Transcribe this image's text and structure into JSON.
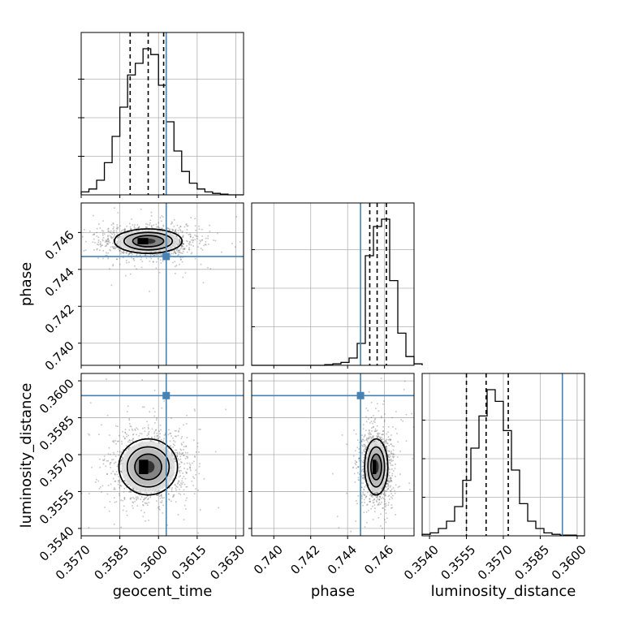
{
  "chart_data": {
    "type": "corner",
    "parameters": [
      "geocent_time",
      "phase",
      "luminosity_distance"
    ],
    "truths": {
      "geocent_time": 0.3603,
      "phase": 0.7447,
      "luminosity_distance": 0.3594
    },
    "quantiles_16_50_84": {
      "geocent_time": [
        0.3589,
        0.3596,
        0.3602
      ],
      "phase": [
        0.7452,
        0.7456,
        0.7461
      ],
      "luminosity_distance": [
        0.3555,
        0.3563,
        0.3572
      ]
    },
    "ranges": {
      "geocent_time": [
        0.357,
        0.3633
      ],
      "phase": [
        0.7388,
        0.7476
      ],
      "luminosity_distance": [
        0.3537,
        0.3603
      ]
    },
    "ticks": {
      "geocent_time": [
        {
          "v": 0.357,
          "label": "0.3570"
        },
        {
          "v": 0.3585,
          "label": "0.3585"
        },
        {
          "v": 0.36,
          "label": "0.3600"
        },
        {
          "v": 0.3615,
          "label": "0.3615"
        },
        {
          "v": 0.363,
          "label": "0.3630"
        }
      ],
      "phase": [
        {
          "v": 0.74,
          "label": "0.740"
        },
        {
          "v": 0.742,
          "label": "0.742"
        },
        {
          "v": 0.744,
          "label": "0.744"
        },
        {
          "v": 0.746,
          "label": "0.746"
        }
      ],
      "luminosity_distance": [
        {
          "v": 0.354,
          "label": "0.3540"
        },
        {
          "v": 0.3555,
          "label": "0.3555"
        },
        {
          "v": 0.357,
          "label": "0.3570"
        },
        {
          "v": 0.3585,
          "label": "0.3585"
        },
        {
          "v": 0.36,
          "label": "0.3600"
        }
      ]
    },
    "axis_labels": {
      "x": [
        "geocent_time",
        "phase",
        "luminosity_distance"
      ],
      "y": [
        "",
        "phase",
        "luminosity_distance"
      ]
    },
    "histograms": {
      "geocent_time": {
        "edges_start": 0.357,
        "bin_width": 0.0003,
        "counts": [
          0.02,
          0.04,
          0.1,
          0.22,
          0.4,
          0.6,
          0.82,
          0.9,
          1.0,
          0.96,
          0.75,
          0.5,
          0.3,
          0.16,
          0.08,
          0.04,
          0.02,
          0.01,
          0.005,
          0.0,
          0.0
        ]
      },
      "phase": {
        "edges_start": 0.7388,
        "bin_width": 0.00044,
        "counts": [
          0,
          0,
          0,
          0,
          0,
          0,
          0,
          0,
          0,
          0.005,
          0.01,
          0.02,
          0.05,
          0.15,
          0.75,
          0.95,
          1.0,
          0.58,
          0.22,
          0.06,
          0.01
        ]
      },
      "luminosity_distance": {
        "edges_start": 0.3537,
        "bin_width": 0.00033,
        "counts": [
          0.01,
          0.02,
          0.05,
          0.1,
          0.2,
          0.38,
          0.6,
          0.82,
          1.0,
          0.92,
          0.72,
          0.45,
          0.22,
          0.1,
          0.05,
          0.02,
          0.01,
          0.005,
          0.005,
          0.0
        ]
      }
    },
    "blobs": {
      "phase_vs_geocent_time": {
        "cx": 0.3596,
        "cy": 0.74553,
        "sx": 0.00075,
        "sy": 0.00038
      },
      "luminosity_distance_vs_geocent_time": {
        "cx": 0.3596,
        "cy": 0.3565,
        "sx": 0.00065,
        "sy": 0.00065
      },
      "luminosity_distance_vs_phase": {
        "cx": 0.74555,
        "cy": 0.3565,
        "sx": 0.00036,
        "sy": 0.00065
      }
    },
    "colors": {
      "truth": "#4682b4",
      "hist": "#000000",
      "grid": "#b0b0b0"
    },
    "grid": true
  }
}
